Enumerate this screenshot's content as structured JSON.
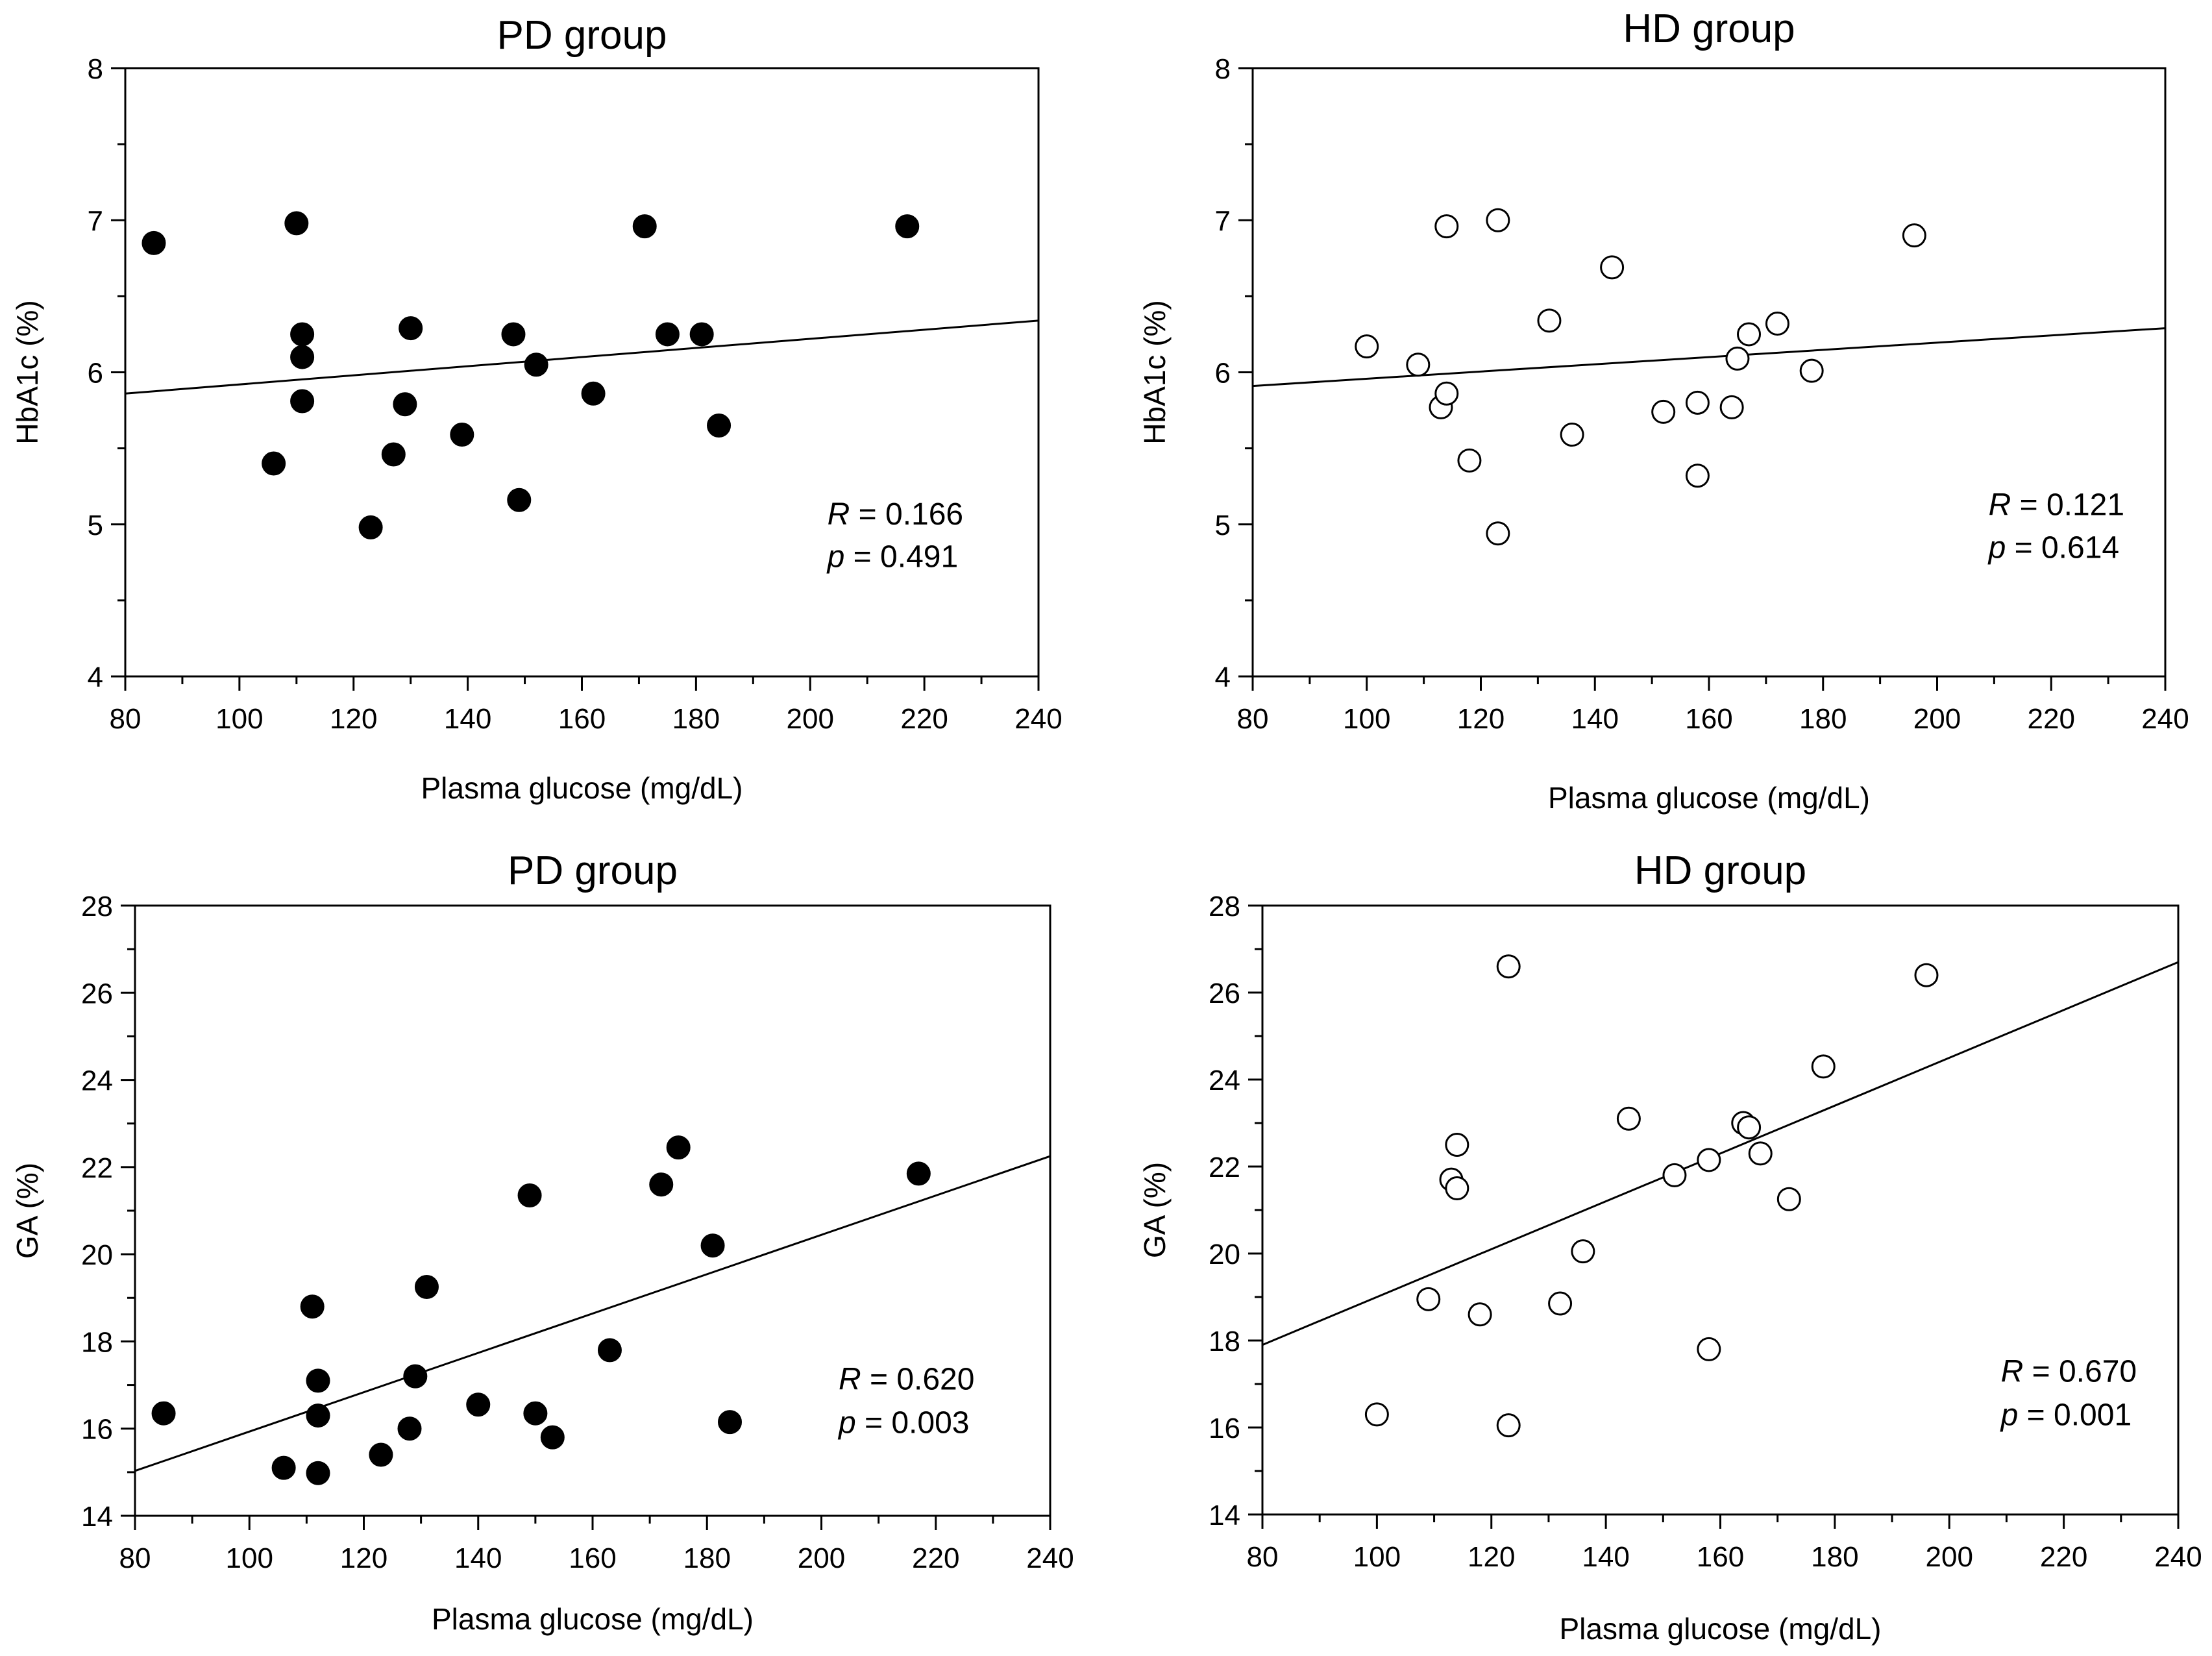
{
  "chart_data": [
    {
      "type": "scatter",
      "title": "PD group",
      "xlabel": "Plasma glucose (mg/dL)",
      "ylabel": "HbA1c (%)",
      "xlim": [
        80,
        240
      ],
      "ylim": [
        4,
        8
      ],
      "xticks": [
        80,
        100,
        120,
        140,
        160,
        180,
        200,
        220,
        240
      ],
      "yticks": [
        4,
        5,
        6,
        7,
        8
      ],
      "marker": "filled",
      "points": [
        {
          "x": 85,
          "y": 6.85
        },
        {
          "x": 110,
          "y": 6.98
        },
        {
          "x": 111,
          "y": 6.25
        },
        {
          "x": 111,
          "y": 6.1
        },
        {
          "x": 111,
          "y": 5.81
        },
        {
          "x": 106,
          "y": 5.4
        },
        {
          "x": 123,
          "y": 4.98
        },
        {
          "x": 127,
          "y": 5.46
        },
        {
          "x": 129,
          "y": 5.79
        },
        {
          "x": 130,
          "y": 6.29
        },
        {
          "x": 139,
          "y": 5.59
        },
        {
          "x": 148,
          "y": 6.25
        },
        {
          "x": 149,
          "y": 5.16
        },
        {
          "x": 152,
          "y": 6.05
        },
        {
          "x": 162,
          "y": 5.86
        },
        {
          "x": 171,
          "y": 6.96
        },
        {
          "x": 175,
          "y": 6.25
        },
        {
          "x": 181,
          "y": 6.25
        },
        {
          "x": 184,
          "y": 5.65
        },
        {
          "x": 217,
          "y": 6.96
        }
      ],
      "fit_line": {
        "x1": 80,
        "y1": 5.86,
        "x2": 240,
        "y2": 6.34
      },
      "stats": {
        "r_label": "R",
        "r_value": " = 0.166",
        "p_label": "p",
        "p_value": " = 0.491"
      },
      "stats_position": {
        "x": 203,
        "y1": 5.0,
        "y2": 4.72
      }
    },
    {
      "type": "scatter",
      "title": "HD group",
      "xlabel": "Plasma glucose (mg/dL)",
      "ylabel": "HbA1c (%)",
      "xlim": [
        80,
        240
      ],
      "ylim": [
        4,
        8
      ],
      "xticks": [
        80,
        100,
        120,
        140,
        160,
        180,
        200,
        220,
        240
      ],
      "yticks": [
        4,
        5,
        6,
        7,
        8
      ],
      "marker": "open",
      "points": [
        {
          "x": 100,
          "y": 6.17
        },
        {
          "x": 109,
          "y": 6.05
        },
        {
          "x": 113,
          "y": 5.77
        },
        {
          "x": 114,
          "y": 5.86
        },
        {
          "x": 114,
          "y": 6.96
        },
        {
          "x": 118,
          "y": 5.42
        },
        {
          "x": 123,
          "y": 7.0
        },
        {
          "x": 123,
          "y": 4.94
        },
        {
          "x": 132,
          "y": 6.34
        },
        {
          "x": 136,
          "y": 5.59
        },
        {
          "x": 143,
          "y": 6.69
        },
        {
          "x": 152,
          "y": 5.74
        },
        {
          "x": 158,
          "y": 5.8
        },
        {
          "x": 158,
          "y": 5.32
        },
        {
          "x": 164,
          "y": 5.77
        },
        {
          "x": 165,
          "y": 6.09
        },
        {
          "x": 167,
          "y": 6.25
        },
        {
          "x": 172,
          "y": 6.32
        },
        {
          "x": 178,
          "y": 6.01
        },
        {
          "x": 196,
          "y": 6.9
        }
      ],
      "fit_line": {
        "x1": 80,
        "y1": 5.91,
        "x2": 240,
        "y2": 6.29
      },
      "stats": {
        "r_label": "R",
        "r_value": " = 0.121",
        "p_label": "p",
        "p_value": " = 0.614"
      },
      "stats_position": {
        "x": 209,
        "y1": 5.06,
        "y2": 4.78
      }
    },
    {
      "type": "scatter",
      "title": "PD group",
      "xlabel": "Plasma glucose (mg/dL)",
      "ylabel": "GA (%)",
      "xlim": [
        80,
        240
      ],
      "ylim": [
        14,
        28
      ],
      "xticks": [
        80,
        100,
        120,
        140,
        160,
        180,
        200,
        220,
        240
      ],
      "yticks": [
        14,
        16,
        18,
        20,
        22,
        24,
        26,
        28
      ],
      "marker": "filled",
      "points": [
        {
          "x": 85,
          "y": 16.35
        },
        {
          "x": 106,
          "y": 15.1
        },
        {
          "x": 111,
          "y": 18.8
        },
        {
          "x": 112,
          "y": 17.1
        },
        {
          "x": 112,
          "y": 16.3
        },
        {
          "x": 112,
          "y": 14.98
        },
        {
          "x": 123,
          "y": 15.4
        },
        {
          "x": 128,
          "y": 16.0
        },
        {
          "x": 129,
          "y": 17.2
        },
        {
          "x": 131,
          "y": 19.25
        },
        {
          "x": 140,
          "y": 16.55
        },
        {
          "x": 149,
          "y": 21.35
        },
        {
          "x": 150,
          "y": 16.35
        },
        {
          "x": 153,
          "y": 15.8
        },
        {
          "x": 163,
          "y": 17.8
        },
        {
          "x": 172,
          "y": 21.6
        },
        {
          "x": 175,
          "y": 22.45
        },
        {
          "x": 181,
          "y": 20.2
        },
        {
          "x": 184,
          "y": 16.15
        },
        {
          "x": 217,
          "y": 21.85
        }
      ],
      "fit_line": {
        "x1": 80,
        "y1": 15.03,
        "x2": 240,
        "y2": 22.25
      },
      "stats": {
        "r_label": "R",
        "r_value": " = 0.620",
        "p_label": "p",
        "p_value": " = 0.003"
      },
      "stats_position": {
        "x": 203,
        "y1": 16.9,
        "y2": 15.9
      }
    },
    {
      "type": "scatter",
      "title": "HD group",
      "xlabel": "Plasma glucose (mg/dL)",
      "ylabel": "GA (%)",
      "xlim": [
        80,
        240
      ],
      "ylim": [
        14,
        28
      ],
      "xticks": [
        80,
        100,
        120,
        140,
        160,
        180,
        200,
        220,
        240
      ],
      "yticks": [
        14,
        16,
        18,
        20,
        22,
        24,
        26,
        28
      ],
      "marker": "open",
      "points": [
        {
          "x": 100,
          "y": 16.3
        },
        {
          "x": 109,
          "y": 18.95
        },
        {
          "x": 113,
          "y": 21.7
        },
        {
          "x": 114,
          "y": 22.5
        },
        {
          "x": 114,
          "y": 21.5
        },
        {
          "x": 118,
          "y": 18.6
        },
        {
          "x": 123,
          "y": 26.6
        },
        {
          "x": 123,
          "y": 16.05
        },
        {
          "x": 132,
          "y": 18.85
        },
        {
          "x": 136,
          "y": 20.05
        },
        {
          "x": 144,
          "y": 23.1
        },
        {
          "x": 152,
          "y": 21.8
        },
        {
          "x": 158,
          "y": 22.15
        },
        {
          "x": 158,
          "y": 17.8
        },
        {
          "x": 164,
          "y": 23.0
        },
        {
          "x": 165,
          "y": 22.9
        },
        {
          "x": 167,
          "y": 22.3
        },
        {
          "x": 172,
          "y": 21.25
        },
        {
          "x": 178,
          "y": 24.3
        },
        {
          "x": 196,
          "y": 26.4
        }
      ],
      "fit_line": {
        "x1": 80,
        "y1": 17.9,
        "x2": 240,
        "y2": 26.7
      },
      "stats": {
        "r_label": "R",
        "r_value": " = 0.670",
        "p_label": "p",
        "p_value": " = 0.001"
      },
      "stats_position": {
        "x": 209,
        "y1": 17.05,
        "y2": 16.05
      }
    }
  ]
}
